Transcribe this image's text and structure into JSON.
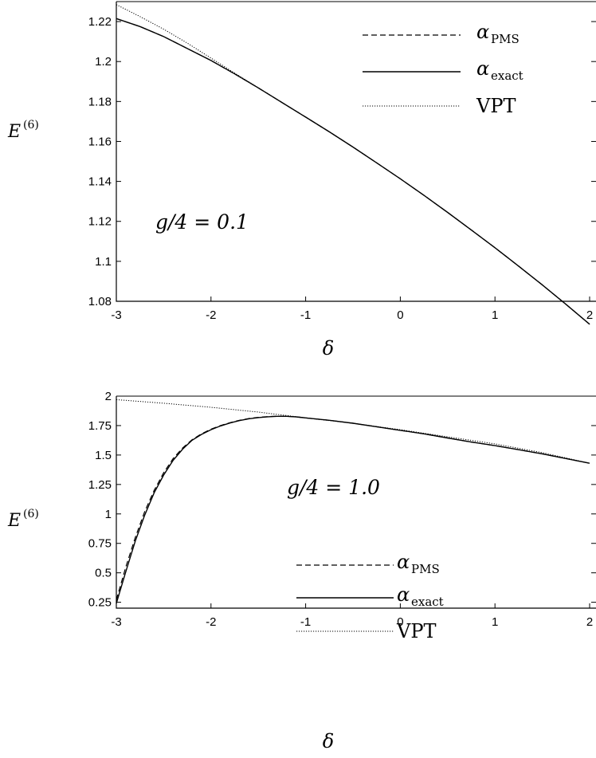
{
  "chart_data": [
    {
      "type": "line",
      "ylabel": "E",
      "ylabel_sup": "(6)",
      "xlabel": "δ",
      "xlim": [
        -3,
        2
      ],
      "ylim": [
        1.08,
        1.23
      ],
      "xticks": [
        "-3",
        "-2",
        "-1",
        "0",
        "1",
        "2"
      ],
      "yticks": [
        "1.08",
        "1.1",
        "1.12",
        "1.14",
        "1.16",
        "1.18",
        "1.2",
        "1.22"
      ],
      "annotation": "g/4 = 0.1",
      "legend_position": "top-right",
      "legend": [
        {
          "symbol": "α",
          "sub": "PMS",
          "style": "dashed"
        },
        {
          "symbol": "α",
          "sub": "exact",
          "style": "solid"
        },
        {
          "symbol": "VPT",
          "sub": "",
          "style": "dotted"
        }
      ],
      "series": [
        {
          "name": "α_PMS",
          "style": "dashed",
          "x": [
            -3.0,
            -2.75,
            -2.5,
            -2.25,
            -2.0,
            -1.75,
            -1.5,
            -1.25,
            -1.0,
            -0.75,
            -0.5,
            -0.25,
            0.0,
            0.25,
            0.5,
            0.75,
            1.0,
            1.25,
            1.5,
            1.75,
            2.0
          ],
          "y": [
            1.2215,
            1.2175,
            1.2125,
            1.2065,
            1.2005,
            1.1938,
            1.1868,
            1.1795,
            1.1722,
            1.1648,
            1.1572,
            1.1493,
            1.1413,
            1.133,
            1.1245,
            1.1157,
            1.1068,
            1.0976,
            1.0882,
            1.0785,
            1.0685
          ]
        },
        {
          "name": "α_exact",
          "style": "solid",
          "x": [
            -3.0,
            -2.75,
            -2.5,
            -2.25,
            -2.0,
            -1.75,
            -1.5,
            -1.25,
            -1.0,
            -0.75,
            -0.5,
            -0.25,
            0.0,
            0.25,
            0.5,
            0.75,
            1.0,
            1.25,
            1.5,
            1.75,
            2.0
          ],
          "y": [
            1.2215,
            1.2175,
            1.2125,
            1.2065,
            1.2005,
            1.1938,
            1.1868,
            1.1795,
            1.1722,
            1.1648,
            1.1572,
            1.1493,
            1.1413,
            1.133,
            1.1245,
            1.1157,
            1.1068,
            1.0976,
            1.0882,
            1.0785,
            1.0685
          ]
        },
        {
          "name": "VPT",
          "style": "dotted",
          "x": [
            -3.0,
            -2.75,
            -2.5,
            -2.25,
            -2.0,
            -1.75,
            -1.5,
            -1.25,
            -1.0,
            -0.75,
            -0.5,
            -0.25,
            0.0,
            0.25,
            0.5,
            0.75,
            1.0,
            1.25,
            1.5,
            1.75,
            2.0
          ],
          "y": [
            1.2285,
            1.2225,
            1.2162,
            1.2092,
            1.2017,
            1.1942,
            1.1869,
            1.1795,
            1.1722,
            1.1648,
            1.1572,
            1.1493,
            1.1413,
            1.133,
            1.1245,
            1.1157,
            1.1068,
            1.0976,
            1.0882,
            1.0785,
            1.0685
          ]
        }
      ]
    },
    {
      "type": "line",
      "ylabel": "E",
      "ylabel_sup": "(6)",
      "xlabel": "δ",
      "xlim": [
        -3,
        2
      ],
      "ylim": [
        0.2,
        2.0
      ],
      "xticks": [
        "-3",
        "-2",
        "-1",
        "0",
        "1",
        "2"
      ],
      "yticks": [
        "0.25",
        "0.5",
        "0.75",
        "1",
        "1.25",
        "1.5",
        "1.75",
        "2"
      ],
      "annotation": "g/4 = 1.0",
      "legend_position": "bottom-center",
      "legend": [
        {
          "symbol": "α",
          "sub": "PMS",
          "style": "dashed"
        },
        {
          "symbol": "α",
          "sub": "exact",
          "style": "solid"
        },
        {
          "symbol": "VPT",
          "sub": "",
          "style": "dotted"
        }
      ],
      "series": [
        {
          "name": "α_PMS",
          "style": "dashed",
          "x": [
            -3.0,
            -2.9,
            -2.8,
            -2.7,
            -2.6,
            -2.5,
            -2.4,
            -2.3,
            -2.2,
            -2.1,
            -2.0,
            -1.9,
            -1.8,
            -1.7,
            -1.6,
            -1.5,
            -1.4,
            -1.3,
            -1.2,
            -1.1,
            -1.0,
            -0.75,
            -0.5,
            -0.25,
            0.0,
            0.25,
            0.5,
            0.75,
            1.0,
            1.25,
            1.5,
            1.75,
            2.0
          ],
          "y": [
            0.27,
            0.55,
            0.8,
            1.02,
            1.2,
            1.35,
            1.47,
            1.56,
            1.63,
            1.68,
            1.72,
            1.75,
            1.775,
            1.795,
            1.81,
            1.82,
            1.826,
            1.83,
            1.829,
            1.824,
            1.815,
            1.795,
            1.77,
            1.74,
            1.71,
            1.68,
            1.645,
            1.61,
            1.58,
            1.545,
            1.51,
            1.47,
            1.43
          ]
        },
        {
          "name": "α_exact",
          "style": "solid",
          "x": [
            -3.0,
            -2.9,
            -2.8,
            -2.7,
            -2.6,
            -2.5,
            -2.4,
            -2.3,
            -2.2,
            -2.1,
            -2.0,
            -1.9,
            -1.8,
            -1.7,
            -1.6,
            -1.5,
            -1.4,
            -1.3,
            -1.2,
            -1.1,
            -1.0,
            -0.75,
            -0.5,
            -0.25,
            0.0,
            0.25,
            0.5,
            0.75,
            1.0,
            1.25,
            1.5,
            1.75,
            2.0
          ],
          "y": [
            0.24,
            0.51,
            0.77,
            0.99,
            1.18,
            1.33,
            1.455,
            1.55,
            1.625,
            1.675,
            1.715,
            1.747,
            1.772,
            1.792,
            1.808,
            1.818,
            1.825,
            1.829,
            1.829,
            1.824,
            1.815,
            1.795,
            1.77,
            1.74,
            1.71,
            1.68,
            1.645,
            1.61,
            1.58,
            1.545,
            1.51,
            1.47,
            1.43
          ]
        },
        {
          "name": "VPT",
          "style": "dotted",
          "x": [
            -3.0,
            -2.5,
            -2.0,
            -1.5,
            -1.0,
            -0.5,
            0.0,
            0.5,
            1.0,
            1.5,
            2.0
          ],
          "y": [
            1.97,
            1.94,
            1.905,
            1.865,
            1.815,
            1.77,
            1.715,
            1.655,
            1.595,
            1.52,
            1.43
          ]
        }
      ]
    }
  ]
}
